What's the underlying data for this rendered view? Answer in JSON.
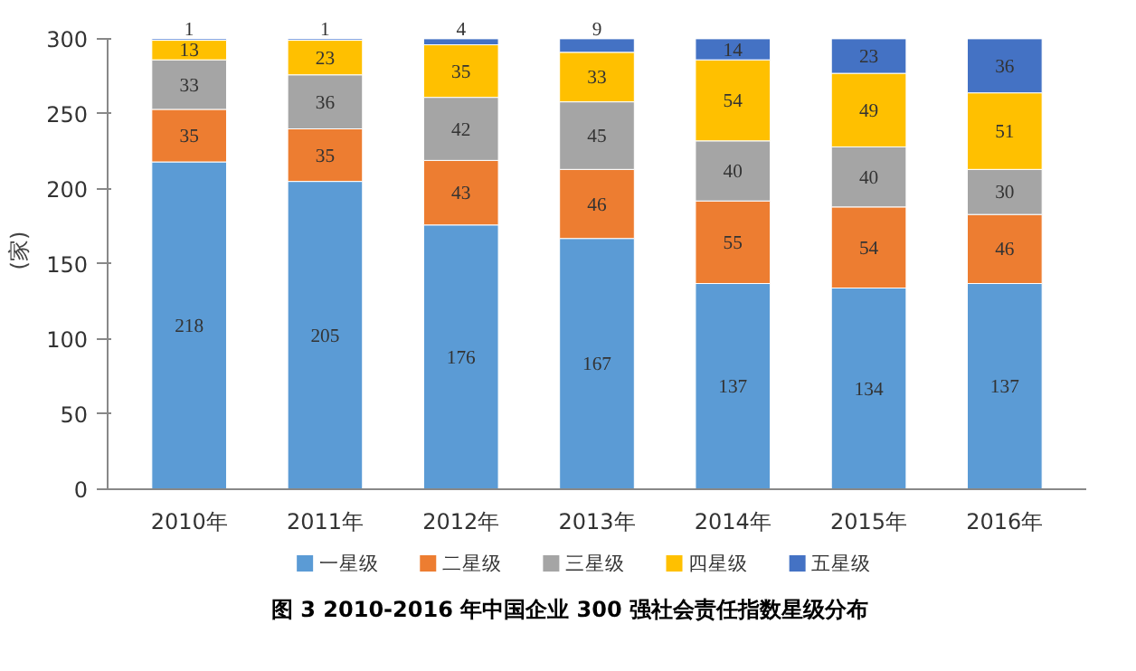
{
  "chart_data": {
    "type": "bar",
    "stacked": true,
    "title": "图 3   2010-2016 年中国企业 300 强社会责任指数星级分布",
    "ylabel": "(家)",
    "categories": [
      "2010年",
      "2011年",
      "2012年",
      "2013年",
      "2014年",
      "2015年",
      "2016年"
    ],
    "series": [
      {
        "name": "一星级",
        "color": "#5b9bd5",
        "values": [
          218,
          205,
          176,
          167,
          137,
          134,
          137
        ]
      },
      {
        "name": "二星级",
        "color": "#ed7d31",
        "values": [
          35,
          35,
          43,
          46,
          55,
          54,
          46
        ]
      },
      {
        "name": "三星级",
        "color": "#a5a5a5",
        "values": [
          33,
          36,
          42,
          45,
          40,
          40,
          30
        ]
      },
      {
        "name": "四星级",
        "color": "#ffc000",
        "values": [
          13,
          23,
          35,
          33,
          54,
          49,
          51
        ]
      },
      {
        "name": "五星级",
        "color": "#4472c4",
        "values": [
          1,
          1,
          4,
          9,
          14,
          23,
          36
        ]
      }
    ],
    "ylim": [
      0,
      300
    ],
    "yticks": [
      0,
      50,
      100,
      150,
      200,
      250,
      300
    ],
    "data_labels": true,
    "legend": "bottom",
    "grid": false
  }
}
